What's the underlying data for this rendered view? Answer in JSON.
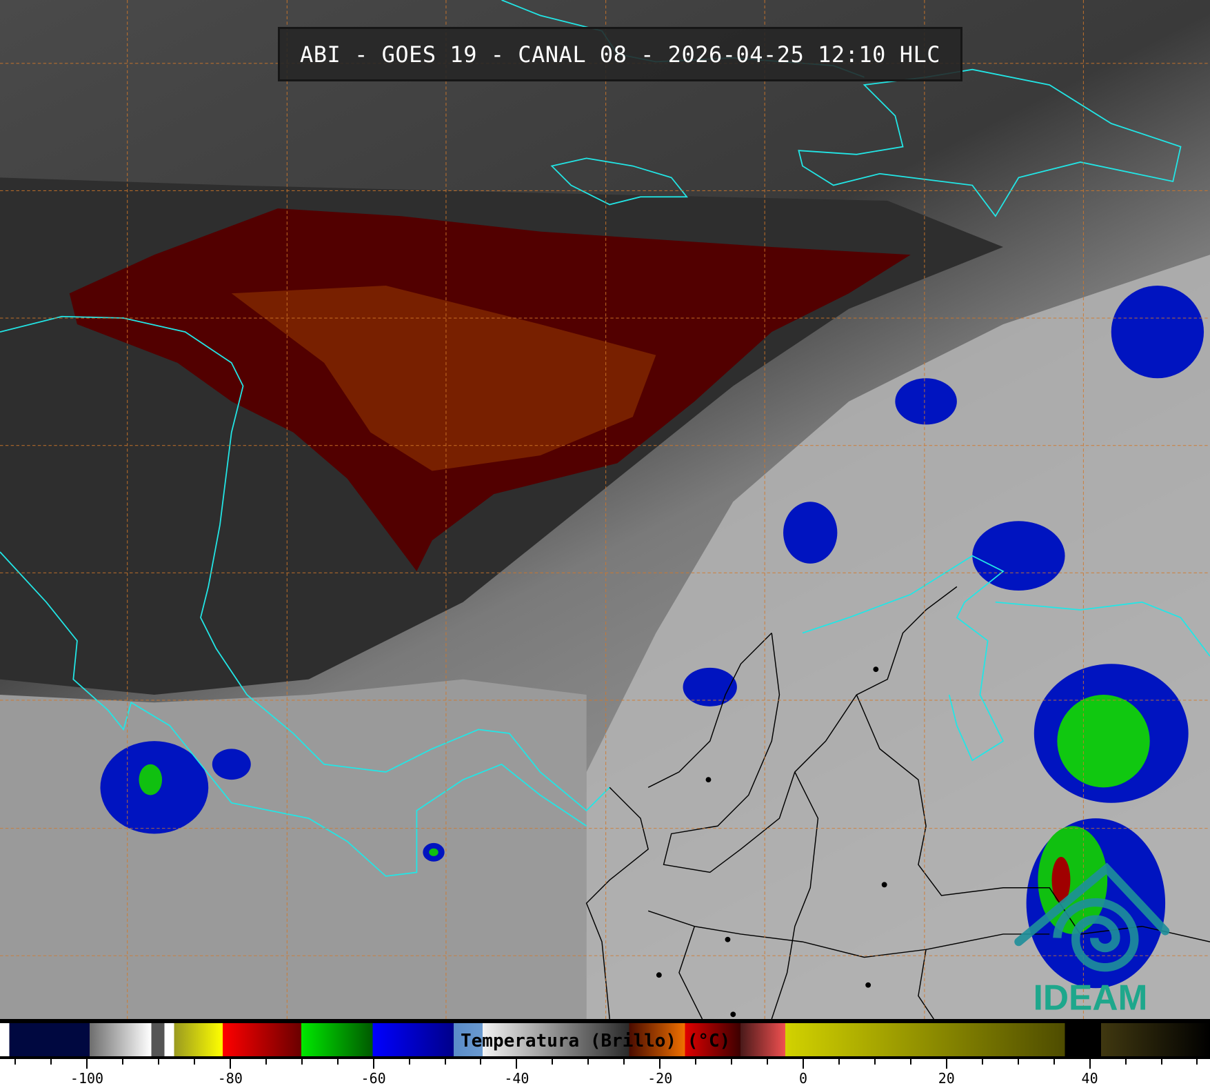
{
  "title": "ABI - GOES 19 - CANAL 08 - 2026-04-25 12:10 HLC",
  "colorbar": {
    "label": "Temperatura (Brillo) (°C)",
    "min": -112,
    "max": 57,
    "major_ticks": [
      -100,
      -80,
      -60,
      -40,
      -20,
      0,
      20,
      40
    ],
    "tick_labels": [
      "-100",
      "-80",
      "-60",
      "-40",
      "-20",
      "0",
      "20",
      "40"
    ],
    "minor_step": 5
  },
  "logo": {
    "text": "IDEAM",
    "color": "#1ea78c"
  },
  "colors": {
    "coastline": "#22e6e6",
    "borders": "#000000",
    "gridlines": "#d2782a",
    "cold_cloud_red": "#5a0000",
    "convective_blue": "#0010c8",
    "convective_green": "#10d010"
  }
}
